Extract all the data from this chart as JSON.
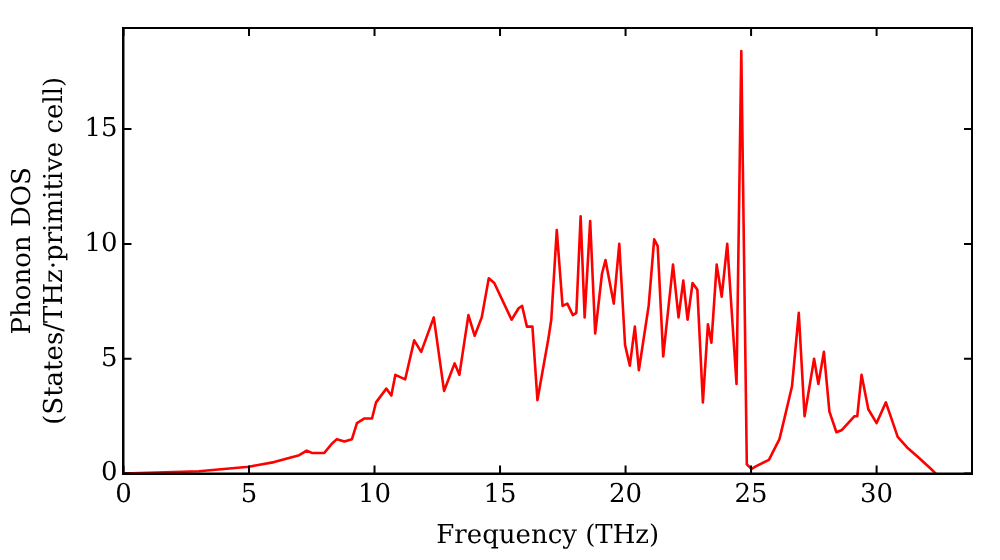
{
  "chart_data": {
    "type": "line",
    "xlabel": "Frequency (THz)",
    "ylabel": "Phonon DOS\n(States/THz·primitive cell)",
    "x": [
      0,
      3,
      5,
      6,
      7,
      7.3,
      7.5,
      8,
      8.3,
      8.5,
      8.8,
      9.1,
      9.3,
      9.6,
      9.9,
      10.06,
      10.47,
      10.67,
      10.83,
      11.22,
      11.58,
      11.86,
      12.36,
      12.77,
      13.19,
      13.38,
      13.74,
      13.99,
      14.27,
      14.55,
      14.77,
      15.46,
      15.74,
      15.88,
      16.07,
      16.29,
      16.49,
      16.93,
      17.04,
      17.26,
      17.49,
      17.68,
      17.9,
      18.04,
      18.21,
      18.37,
      18.59,
      18.79,
      19.06,
      19.2,
      19.53,
      19.75,
      19.98,
      20.17,
      20.37,
      20.53,
      20.92,
      21.14,
      21.28,
      21.5,
      21.89,
      22.11,
      22.3,
      22.47,
      22.67,
      22.86,
      23.08,
      23.28,
      23.42,
      23.63,
      23.83,
      24.05,
      24.42,
      24.61,
      24.83,
      25.02,
      25.17,
      25.71,
      26.13,
      26.35,
      26.63,
      26.9,
      27.13,
      27.51,
      27.68,
      27.9,
      28.12,
      28.4,
      28.62,
      29.12,
      29.23,
      29.4,
      29.67,
      30,
      30.37,
      30.84,
      31.25,
      31.67,
      32.17,
      32.36
    ],
    "series": [
      {
        "color": "#ff0000",
        "values": [
          0,
          0.1,
          0.3,
          0.5,
          0.8,
          1,
          0.9,
          0.9,
          1.3,
          1.5,
          1.4,
          1.5,
          2.2,
          2.4,
          2.4,
          3.1,
          3.7,
          3.4,
          4.3,
          4.1,
          5.8,
          5.3,
          6.8,
          3.6,
          4.8,
          4.3,
          6.9,
          6,
          6.8,
          8.5,
          8.3,
          6.7,
          7.2,
          7.3,
          6.4,
          6.4,
          3.2,
          5.9,
          6.7,
          10.6,
          7.3,
          7.4,
          6.9,
          7,
          11.2,
          6.8,
          11,
          6.1,
          8.7,
          9.3,
          7.4,
          10,
          5.6,
          4.7,
          6.4,
          4.5,
          7.3,
          10.2,
          9.9,
          5.1,
          9.1,
          6.8,
          8.4,
          6.7,
          8.3,
          8,
          3.1,
          6.5,
          5.7,
          9.1,
          7.7,
          10,
          3.9,
          18.4,
          0.4,
          0.2,
          0.3,
          0.6,
          1.5,
          2.5,
          3.8,
          7,
          2.5,
          5,
          3.9,
          5.3,
          2.7,
          1.8,
          1.9,
          2.5,
          2.5,
          4.3,
          2.8,
          2.2,
          3.1,
          1.6,
          1.1,
          0.7,
          0.2,
          0
        ]
      }
    ],
    "xlim": [
      0,
      33.8
    ],
    "ylim": [
      0,
      19.4
    ],
    "xticks": [
      0,
      5,
      10,
      15,
      20,
      25,
      30
    ],
    "yticks": [
      0,
      5,
      10,
      15
    ],
    "grid": false,
    "legend": false,
    "marker": "none",
    "line_style": "solid"
  }
}
